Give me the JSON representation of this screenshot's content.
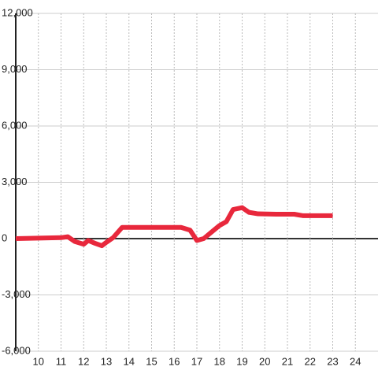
{
  "chart_data": {
    "type": "line",
    "x": [
      9,
      11,
      11.3,
      11.6,
      12,
      12.2,
      12.5,
      12.8,
      13,
      13.3,
      13.7,
      14,
      15,
      16,
      16.3,
      16.7,
      17,
      17.3,
      17.7,
      18,
      18.3,
      18.6,
      19,
      19.3,
      19.7,
      20.5,
      21.3,
      21.7,
      23
    ],
    "series": [
      {
        "color": "#e8283c",
        "values": [
          0,
          50,
          100,
          -150,
          -300,
          -100,
          -250,
          -380,
          -200,
          50,
          600,
          600,
          600,
          600,
          600,
          450,
          -100,
          0,
          400,
          700,
          900,
          1550,
          1650,
          1400,
          1320,
          1300,
          1300,
          1220,
          1220
        ]
      }
    ],
    "xlim": [
      9,
      25
    ],
    "ylim": [
      -6000,
      12000
    ],
    "xticks": [
      10,
      11,
      12,
      13,
      14,
      15,
      16,
      17,
      18,
      19,
      20,
      21,
      22,
      23,
      24
    ],
    "yticks": [
      {
        "value": -6000,
        "label": "-6,000"
      },
      {
        "value": -3000,
        "label": "-3,000"
      },
      0,
      {
        "value": 3000,
        "label": "3,000"
      },
      {
        "value": 6000,
        "label": "6,000"
      },
      {
        "value": 9000,
        "label": "9,000"
      },
      {
        "value": 12000,
        "label": "12,000"
      }
    ],
    "grid": true
  }
}
